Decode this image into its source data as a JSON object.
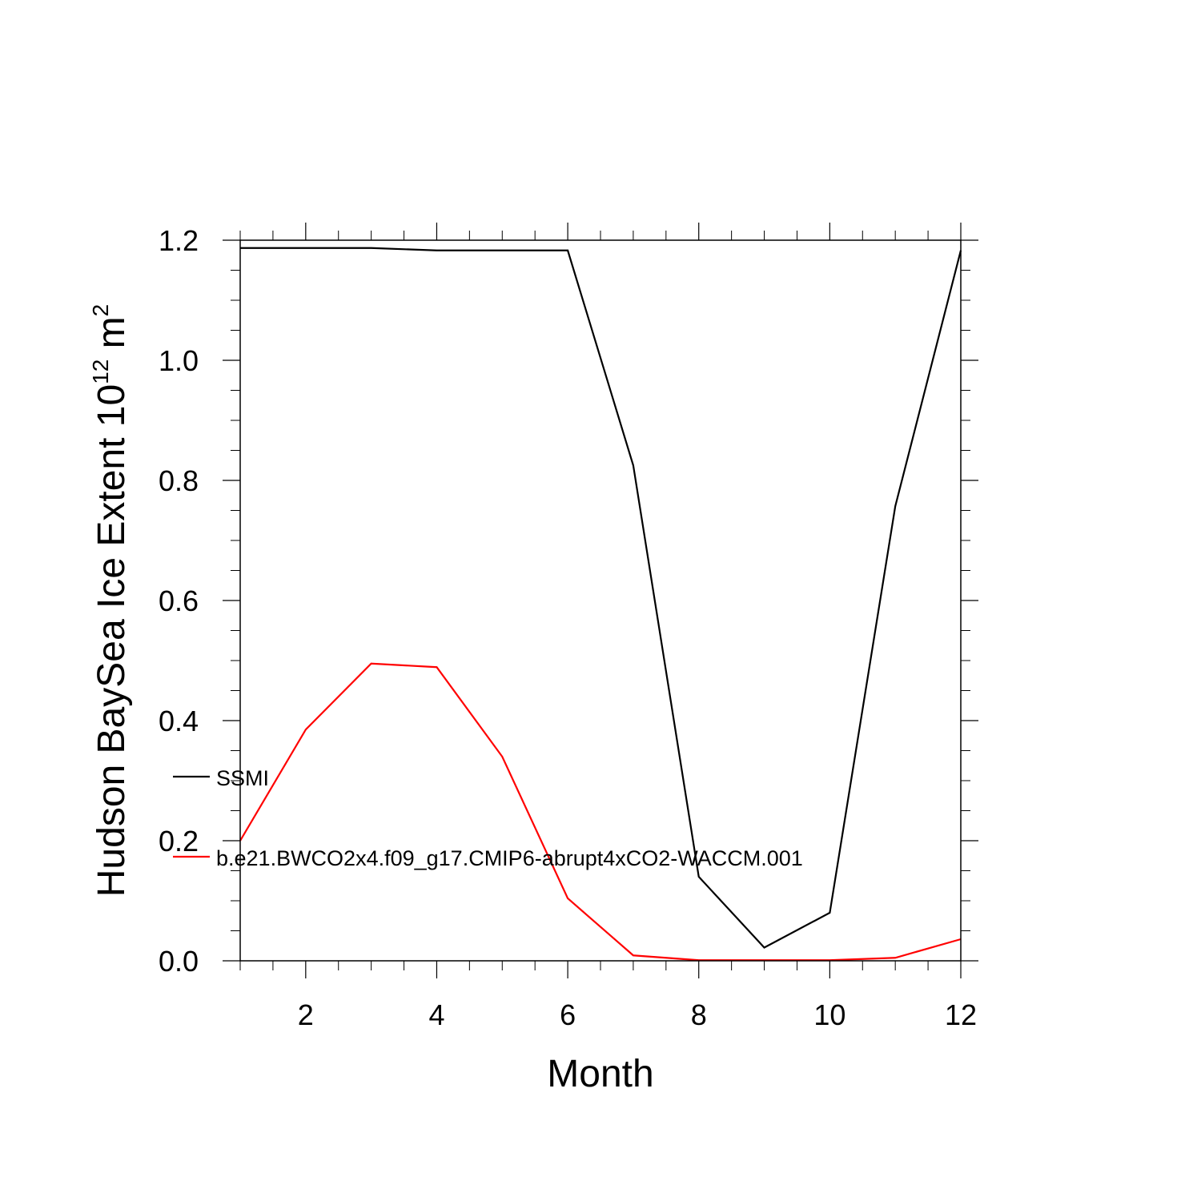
{
  "chart_data": {
    "type": "line",
    "xlabel": "Month",
    "ylabel": {
      "prefix": "Hudson BaySea Ice Extent 10",
      "exponent": "12",
      "unit": " m",
      "unit_exponent": "2"
    },
    "xlim": [
      1,
      12
    ],
    "ylim": [
      0,
      1.2
    ],
    "x_ticks": [
      2,
      4,
      6,
      8,
      10,
      12
    ],
    "x_tick_labels": [
      "2",
      "4",
      "6",
      "8",
      "10",
      "12"
    ],
    "y_ticks": [
      0,
      0.2,
      0.4,
      0.6,
      0.8,
      1.0,
      1.2
    ],
    "y_tick_labels": [
      "0.0",
      "0.2",
      "0.4",
      "0.6",
      "0.8",
      "1.0",
      "1.2"
    ],
    "x": [
      1,
      2,
      3,
      4,
      5,
      6,
      7,
      8,
      9,
      10,
      11,
      12
    ],
    "series": [
      {
        "name": "SSMI",
        "color": "#000000",
        "values": [
          1.187,
          1.187,
          1.187,
          1.183,
          1.183,
          1.183,
          0.825,
          0.14,
          0.022,
          0.08,
          0.757,
          1.183
        ]
      },
      {
        "name": "b.e21.BWCO2x4.f09_g17.CMIP6-abrupt4xCO2-WACCM.001",
        "color": "#ff0000",
        "values": [
          0.2,
          0.385,
          0.495,
          0.489,
          0.34,
          0.104,
          0.009,
          0.001,
          0.001,
          0.001,
          0.005,
          0.036
        ]
      }
    ],
    "legend_position": "left-inside"
  }
}
